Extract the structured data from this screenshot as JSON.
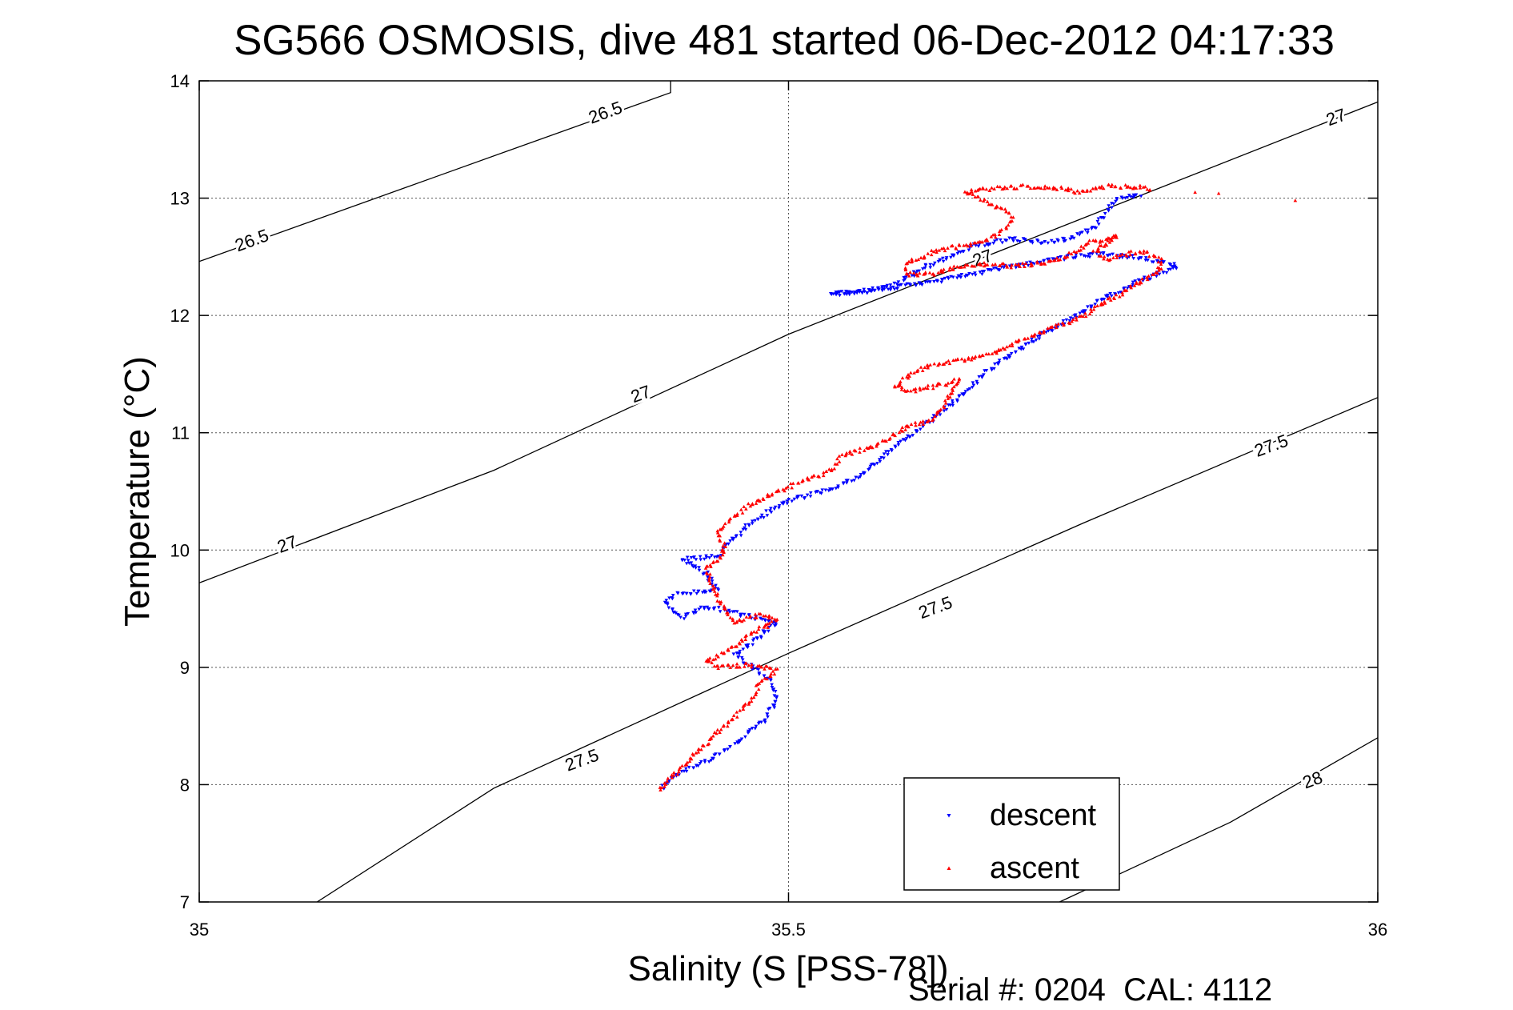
{
  "chart_data": {
    "type": "scatter",
    "title": "SG566 OSMOSIS, dive 481 started 06-Dec-2012 04:17:33",
    "xlabel": "Salinity (S [PSS-78])",
    "ylabel": "Temperature (°C)",
    "footer": "Serial #: 0204  CAL: 4112",
    "xlim": [
      35,
      36
    ],
    "ylim": [
      7,
      14
    ],
    "xticks": [
      35,
      35.5,
      36
    ],
    "xtick_labels": [
      "35",
      "35.5",
      "36"
    ],
    "yticks": [
      7,
      8,
      9,
      10,
      11,
      12,
      13,
      14
    ],
    "ytick_labels": [
      "7",
      "8",
      "9",
      "10",
      "11",
      "12",
      "13",
      "14"
    ],
    "grid": true,
    "legend_position": "bottom-right",
    "series": [
      {
        "name": "descent",
        "color": "#0000ff",
        "marker": "triangle-down",
        "path": [
          [
            35.393,
            7.98
          ],
          [
            35.405,
            8.08
          ],
          [
            35.43,
            8.2
          ],
          [
            35.455,
            8.35
          ],
          [
            35.48,
            8.55
          ],
          [
            35.49,
            8.72
          ],
          [
            35.485,
            8.88
          ],
          [
            35.47,
            9.0
          ],
          [
            35.455,
            9.1
          ],
          [
            35.47,
            9.22
          ],
          [
            35.49,
            9.38
          ],
          [
            35.46,
            9.45
          ],
          [
            35.43,
            9.52
          ],
          [
            35.41,
            9.42
          ],
          [
            35.395,
            9.55
          ],
          [
            35.405,
            9.62
          ],
          [
            35.44,
            9.66
          ],
          [
            35.43,
            9.8
          ],
          [
            35.41,
            9.92
          ],
          [
            35.44,
            9.95
          ],
          [
            35.45,
            10.05
          ],
          [
            35.47,
            10.25
          ],
          [
            35.5,
            10.42
          ],
          [
            35.53,
            10.5
          ],
          [
            35.56,
            10.62
          ],
          [
            35.58,
            10.8
          ],
          [
            35.6,
            10.95
          ],
          [
            35.62,
            11.1
          ],
          [
            35.645,
            11.3
          ],
          [
            35.66,
            11.45
          ],
          [
            35.68,
            11.62
          ],
          [
            35.71,
            11.8
          ],
          [
            35.73,
            11.92
          ],
          [
            35.745,
            12.0
          ],
          [
            35.76,
            12.1
          ],
          [
            35.78,
            12.2
          ],
          [
            35.8,
            12.3
          ],
          [
            35.82,
            12.38
          ],
          [
            35.83,
            12.42
          ],
          [
            35.815,
            12.46
          ],
          [
            35.79,
            12.5
          ],
          [
            35.765,
            12.52
          ],
          [
            35.74,
            12.5
          ],
          [
            35.72,
            12.47
          ],
          [
            35.7,
            12.44
          ],
          [
            35.68,
            12.4
          ],
          [
            35.66,
            12.36
          ],
          [
            35.64,
            12.32
          ],
          [
            35.62,
            12.28
          ],
          [
            35.59,
            12.24
          ],
          [
            35.56,
            12.2
          ],
          [
            35.535,
            12.18
          ],
          [
            35.56,
            12.2
          ],
          [
            35.59,
            12.26
          ],
          [
            35.61,
            12.38
          ],
          [
            35.635,
            12.5
          ],
          [
            35.66,
            12.6
          ],
          [
            35.69,
            12.65
          ],
          [
            35.715,
            12.62
          ],
          [
            35.74,
            12.66
          ],
          [
            35.76,
            12.75
          ],
          [
            35.77,
            12.88
          ],
          [
            35.78,
            13.0
          ],
          [
            35.79,
            13.02
          ],
          [
            35.795,
            13.03
          ],
          [
            35.8,
            13.02
          ]
        ]
      },
      {
        "name": "ascent",
        "color": "#ff0000",
        "marker": "triangle-up",
        "path": [
          [
            35.39,
            7.95
          ],
          [
            35.4,
            8.05
          ],
          [
            35.41,
            8.15
          ],
          [
            35.425,
            8.3
          ],
          [
            35.44,
            8.45
          ],
          [
            35.455,
            8.58
          ],
          [
            35.465,
            8.68
          ],
          [
            35.47,
            8.75
          ],
          [
            35.475,
            8.85
          ],
          [
            35.48,
            8.9
          ],
          [
            35.49,
            8.98
          ],
          [
            35.465,
            9.02
          ],
          [
            35.44,
            9.0
          ],
          [
            35.43,
            9.05
          ],
          [
            35.45,
            9.15
          ],
          [
            35.47,
            9.3
          ],
          [
            35.49,
            9.4
          ],
          [
            35.475,
            9.45
          ],
          [
            35.455,
            9.38
          ],
          [
            35.445,
            9.5
          ],
          [
            35.44,
            9.6
          ],
          [
            35.435,
            9.72
          ],
          [
            35.43,
            9.85
          ],
          [
            35.445,
            9.95
          ],
          [
            35.445,
            10.05
          ],
          [
            35.44,
            10.15
          ],
          [
            35.45,
            10.25
          ],
          [
            35.465,
            10.38
          ],
          [
            35.49,
            10.5
          ],
          [
            35.51,
            10.58
          ],
          [
            35.53,
            10.65
          ],
          [
            35.54,
            10.72
          ],
          [
            35.545,
            10.8
          ],
          [
            35.57,
            10.88
          ],
          [
            35.585,
            10.95
          ],
          [
            35.6,
            11.05
          ],
          [
            35.62,
            11.1
          ],
          [
            35.63,
            11.2
          ],
          [
            35.635,
            11.3
          ],
          [
            35.64,
            11.38
          ],
          [
            35.645,
            11.45
          ],
          [
            35.625,
            11.4
          ],
          [
            35.6,
            11.35
          ],
          [
            35.59,
            11.4
          ],
          [
            35.605,
            11.5
          ],
          [
            35.62,
            11.58
          ],
          [
            35.65,
            11.62
          ],
          [
            35.675,
            11.68
          ],
          [
            35.7,
            11.8
          ],
          [
            35.72,
            11.88
          ],
          [
            35.74,
            11.95
          ],
          [
            35.755,
            12.02
          ],
          [
            35.77,
            12.12
          ],
          [
            35.785,
            12.2
          ],
          [
            35.8,
            12.3
          ],
          [
            35.815,
            12.38
          ],
          [
            35.815,
            12.48
          ],
          [
            35.8,
            12.55
          ],
          [
            35.785,
            12.52
          ],
          [
            35.77,
            12.48
          ],
          [
            35.76,
            12.55
          ],
          [
            35.77,
            12.62
          ],
          [
            35.78,
            12.68
          ],
          [
            35.765,
            12.64
          ],
          [
            35.755,
            12.62
          ],
          [
            35.745,
            12.55
          ],
          [
            35.73,
            12.48
          ],
          [
            35.71,
            12.44
          ],
          [
            35.69,
            12.42
          ],
          [
            35.665,
            12.44
          ],
          [
            35.645,
            12.42
          ],
          [
            35.625,
            12.36
          ],
          [
            35.6,
            12.35
          ],
          [
            35.6,
            12.45
          ],
          [
            35.625,
            12.55
          ],
          [
            35.65,
            12.6
          ],
          [
            35.67,
            12.65
          ],
          [
            35.685,
            12.75
          ],
          [
            35.69,
            12.85
          ],
          [
            35.68,
            12.92
          ],
          [
            35.665,
            12.98
          ],
          [
            35.65,
            13.05
          ],
          [
            35.67,
            13.08
          ],
          [
            35.7,
            13.1
          ],
          [
            35.73,
            13.08
          ],
          [
            35.75,
            13.05
          ],
          [
            35.77,
            13.1
          ],
          [
            35.79,
            13.1
          ],
          [
            35.81,
            13.08
          ]
        ],
        "extra_points": [
          [
            35.845,
            13.05
          ],
          [
            35.865,
            13.04
          ],
          [
            35.93,
            12.98
          ]
        ]
      }
    ],
    "density_contours": [
      {
        "label": "26.5",
        "points": [
          [
            35.0,
            12.46
          ],
          [
            35.2,
            13.18
          ],
          [
            35.4,
            13.9
          ],
          [
            35.4,
            14.0
          ]
        ],
        "label_positions": [
          [
            35.045,
            12.63
          ],
          [
            35.345,
            13.72
          ]
        ]
      },
      {
        "label": "27",
        "points": [
          [
            35.0,
            9.72
          ],
          [
            35.25,
            10.68
          ],
          [
            35.5,
            11.84
          ],
          [
            35.75,
            12.83
          ],
          [
            36.0,
            13.82
          ]
        ],
        "label_positions": [
          [
            35.075,
            10.04
          ],
          [
            35.375,
            11.32
          ],
          [
            35.665,
            12.48
          ],
          [
            35.965,
            13.68
          ]
        ]
      },
      {
        "label": "27.5",
        "points": [
          [
            35.1,
            7.0
          ],
          [
            35.25,
            7.97
          ],
          [
            35.5,
            9.12
          ],
          [
            35.75,
            10.23
          ],
          [
            36.0,
            11.3
          ]
        ],
        "label_positions": [
          [
            35.325,
            8.2
          ],
          [
            35.625,
            9.5
          ],
          [
            35.91,
            10.88
          ]
        ]
      },
      {
        "label": "28",
        "points": [
          [
            35.73,
            7.0
          ],
          [
            35.875,
            7.68
          ],
          [
            36.0,
            8.4
          ]
        ],
        "label_positions": [
          [
            35.945,
            8.03
          ]
        ]
      }
    ]
  }
}
